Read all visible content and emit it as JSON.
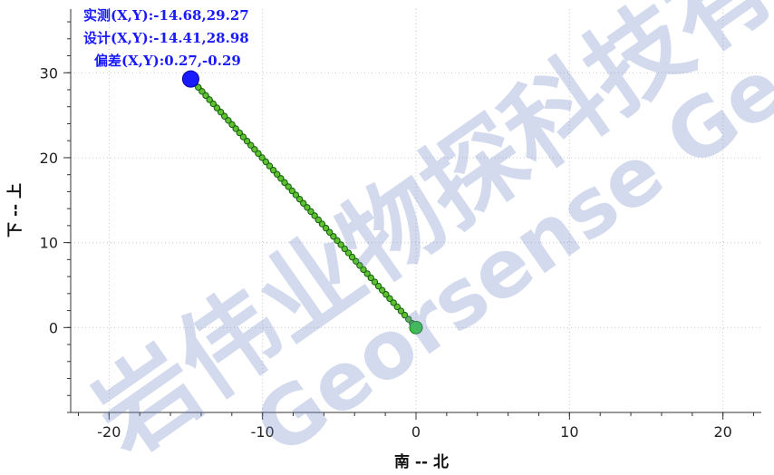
{
  "chart_data": {
    "type": "line",
    "xlabel": "南  --  北",
    "ylabel": "下  --  上",
    "xlim": [
      -22.5,
      22.5
    ],
    "ylim": [
      -10,
      37.5
    ],
    "xticks": [
      -20,
      -10,
      0,
      10,
      20
    ],
    "yticks": [
      0,
      10,
      20,
      30
    ],
    "xtick_labels": [
      "-20",
      "-10",
      "0",
      "10",
      "20"
    ],
    "ytick_labels": [
      "0",
      "10",
      "20",
      "30"
    ],
    "grid": true,
    "annotations": [
      "实测(X,Y):-14.68,29.27",
      "设计(X,Y):-14.41,28.98",
      "偏差(X,Y):0.27,-0.29"
    ],
    "series": [
      {
        "color": "#d0372a",
        "x": [
          0,
          -14.41
        ],
        "y": [
          0,
          28.98
        ]
      },
      {
        "color": "#1f8c1f",
        "marker": "circle",
        "x": [
          0,
          -14.68
        ],
        "y": [
          0,
          29.27
        ]
      }
    ],
    "points": {
      "start": {
        "x": 0,
        "y": 0,
        "color": "#33cc33"
      },
      "end": {
        "x": -14.68,
        "y": 29.27,
        "color": "#1a1aff"
      }
    }
  },
  "watermark": {
    "text1": "岩伟业物探科技有",
    "text2": "Georsense Geotech.co"
  }
}
